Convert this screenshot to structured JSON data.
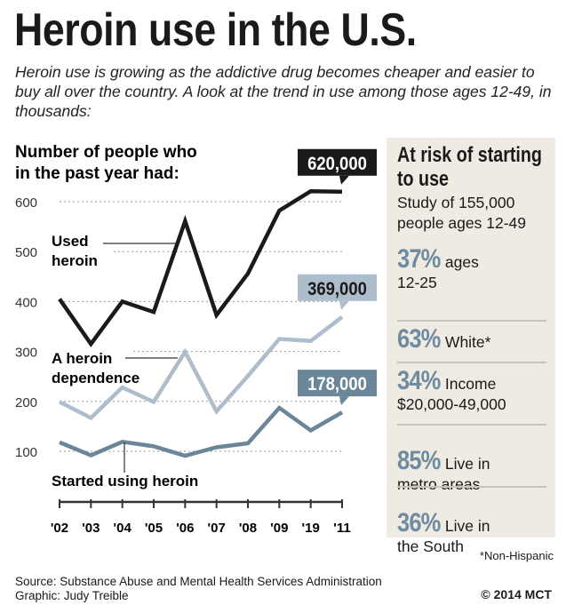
{
  "title": "Heroin use in the U.S.",
  "subtitle": "Heroin use is growing as the addictive drug becomes cheaper and easier to buy all over the country. A look at the trend in use among those ages 12-49, in thousands:",
  "chart_data": {
    "type": "line",
    "title": "Number of people who in the past year had:",
    "title_lines": [
      "Number of people who",
      "in the past year had:"
    ],
    "categories": [
      "'02",
      "'03",
      "'04",
      "'05",
      "'06",
      "'07",
      "'08",
      "'09",
      "'19",
      "'11"
    ],
    "yticks": [
      100,
      200,
      300,
      400,
      500,
      600
    ],
    "ylim": [
      40,
      660
    ],
    "grid": "dotted horizontal",
    "series": [
      {
        "name": "Used heroin",
        "label_lines": [
          "Used",
          "heroin"
        ],
        "color": "#1a1a1a",
        "values": [
          405,
          315,
          400,
          379,
          561,
          373,
          456,
          582,
          621,
          620
        ],
        "callout": "620,000",
        "callout_bg": "#1a1a1a",
        "callout_fg": "#ffffff"
      },
      {
        "name": "A heroin dependence",
        "label_lines": [
          "A heroin",
          "dependence"
        ],
        "color": "#aebdcb",
        "values": [
          199,
          167,
          228,
          199,
          299,
          180,
          251,
          325,
          321,
          369
        ],
        "callout": "369,000",
        "callout_bg": "#aebdcb",
        "callout_fg": "#1a1a1a"
      },
      {
        "name": "Started using heroin",
        "label_lines": [
          "Started using heroin"
        ],
        "color": "#6b8699",
        "values": [
          118,
          92,
          119,
          110,
          91,
          108,
          116,
          187,
          142,
          178
        ],
        "callout": "178,000",
        "callout_bg": "#6b8699",
        "callout_fg": "#ffffff"
      }
    ]
  },
  "panel": {
    "title": [
      "At risk of starting",
      "to use"
    ],
    "subtitle": [
      "Study of 155,000",
      "people ages 12-49"
    ],
    "stats": [
      {
        "pct": "37%",
        "text1": "ages",
        "text2": "12-25"
      },
      {
        "pct": "63%",
        "text1": "White*",
        "text2": ""
      },
      {
        "pct": "34%",
        "text1": "Income",
        "text2": "$20,000-49,000"
      },
      {
        "pct": "85%",
        "text1": "Live in",
        "text2": "metro areas"
      },
      {
        "pct": "36%",
        "text1": "Live in",
        "text2": "the South"
      }
    ],
    "bg_color": "#efebe3",
    "pct_color": "#6f8ba0"
  },
  "footnote": "*Non-Hispanic",
  "source": "Source: Substance Abuse and Mental Health Services Administration",
  "graphic": "Graphic: Judy Treible",
  "credit": "© 2014 MCT"
}
